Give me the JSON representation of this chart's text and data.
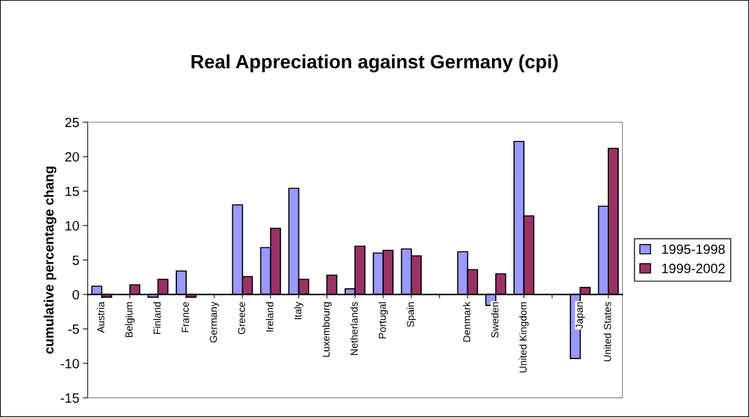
{
  "chart_data": {
    "type": "bar",
    "title": "Real Appreciation against Germany (cpi)",
    "ylabel": "cumulative percentage chang",
    "categories": [
      "Austria",
      "Belgium",
      "Finland",
      "France",
      "Germany",
      "Greece",
      "Ireland",
      "Italy",
      "Luxembourg",
      "Netherlands",
      "Portugal",
      "Spain",
      null,
      "Denmark",
      "Sweden",
      "United Kingdom",
      null,
      "Japan",
      "United States"
    ],
    "series": [
      {
        "name": "1995-1998",
        "color": "#9999ff",
        "values": [
          1.2,
          null,
          -0.4,
          3.4,
          null,
          13.0,
          6.8,
          15.4,
          null,
          0.8,
          6.0,
          6.6,
          null,
          6.2,
          -1.6,
          22.2,
          null,
          -9.3,
          12.8
        ]
      },
      {
        "name": "1999-2002",
        "color": "#993366",
        "values": [
          -0.4,
          1.4,
          2.2,
          -0.4,
          null,
          2.6,
          9.6,
          2.2,
          2.8,
          7.0,
          6.4,
          5.6,
          null,
          3.6,
          3.0,
          11.4,
          null,
          1.0,
          21.2
        ]
      }
    ],
    "ylim": [
      -15,
      25
    ],
    "yticks": [
      -15,
      -10,
      -5,
      0,
      5,
      10,
      15,
      20,
      25
    ],
    "grid": false,
    "legend": "right"
  }
}
